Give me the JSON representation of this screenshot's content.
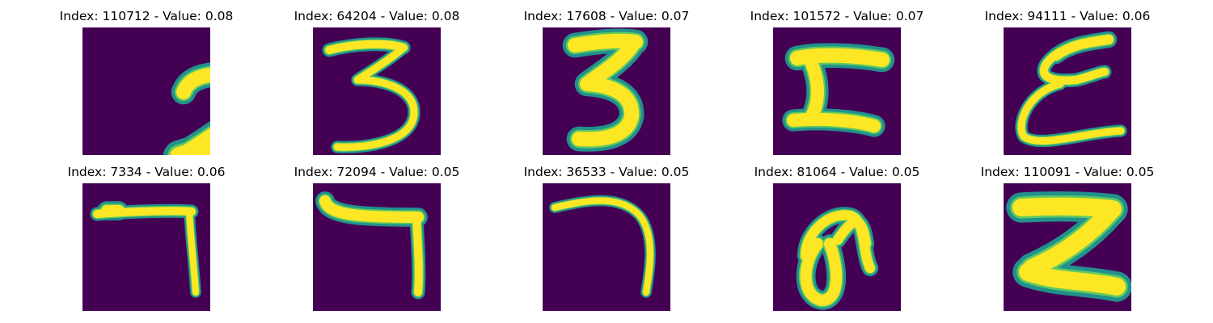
{
  "figure": {
    "background_color": "#440154",
    "stroke_colors": {
      "edge": "#21918c",
      "mid": "#5ec962",
      "core": "#fde725"
    },
    "panels": [
      {
        "title": "Index: 110712 - Value: 0.08",
        "digit_shape": "two"
      },
      {
        "title": "Index: 64204 - Value: 0.08",
        "digit_shape": "three-open"
      },
      {
        "title": "Index: 17608 - Value: 0.07",
        "digit_shape": "three-bold"
      },
      {
        "title": "Index: 101572 - Value: 0.07",
        "digit_shape": "five-z"
      },
      {
        "title": "Index: 94111 - Value: 0.06",
        "digit_shape": "epsilon"
      },
      {
        "title": "Index: 7334 - Value: 0.06",
        "digit_shape": "seven-square"
      },
      {
        "title": "Index: 72094 - Value: 0.05",
        "digit_shape": "seven-bent"
      },
      {
        "title": "Index: 36533 - Value: 0.05",
        "digit_shape": "seven-curved"
      },
      {
        "title": "Index: 81064 - Value: 0.05",
        "digit_shape": "loop"
      },
      {
        "title": "Index: 110091 - Value: 0.05",
        "digit_shape": "z-bold"
      }
    ]
  }
}
